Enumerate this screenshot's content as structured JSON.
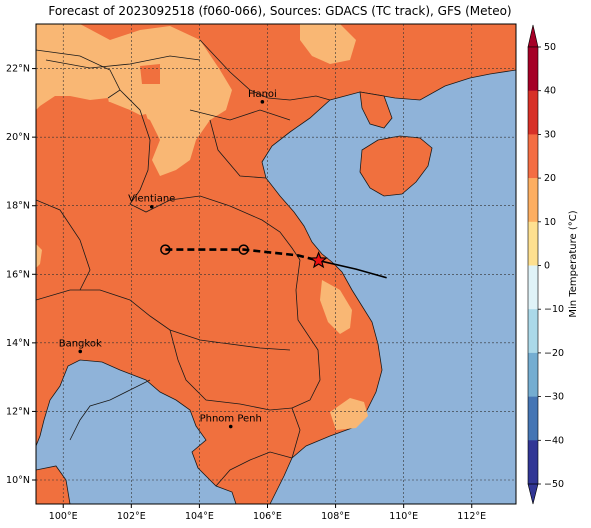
{
  "title": "Forecast of 2023092518 (f060-066), Sources: GDACS (TC track), GFS (Meteo)",
  "map": {
    "lon_range": [
      99.2,
      113.3
    ],
    "lat_range": [
      9.3,
      23.3
    ],
    "lon_ticks": [
      "100°E",
      "102°E",
      "104°E",
      "106°E",
      "108°E",
      "110°E",
      "112°E"
    ],
    "lat_ticks": [
      "22°N",
      "20°N",
      "18°N",
      "16°N",
      "14°N",
      "12°N",
      "10°N"
    ],
    "cities": [
      {
        "name": "Hanoi",
        "lon": 105.85,
        "lat": 21.03
      },
      {
        "name": "Vientiane",
        "lon": 102.6,
        "lat": 17.97
      },
      {
        "name": "Bangkok",
        "lon": 100.5,
        "lat": 13.75
      },
      {
        "name": "Phnom Penh",
        "lon": 104.92,
        "lat": 11.56
      }
    ],
    "track_forecast": [
      {
        "lon": 103.0,
        "lat": 16.72
      },
      {
        "lon": 105.3,
        "lat": 16.72
      },
      {
        "lon": 106.9,
        "lat": 16.55
      },
      {
        "lon": 107.5,
        "lat": 16.4
      }
    ],
    "track_past": [
      {
        "lon": 107.5,
        "lat": 16.4
      },
      {
        "lon": 108.6,
        "lat": 16.15
      },
      {
        "lon": 109.5,
        "lat": 15.9
      }
    ],
    "current_position": {
      "lon": 107.5,
      "lat": 16.4
    },
    "colors": {
      "ocean": "#8fb3d9",
      "land_20_30": "#f0703e",
      "land_10_20": "#f9b774",
      "border": "#1a1a1a"
    }
  },
  "colorbar": {
    "label": "Min Temperature (°C)",
    "ticks": [
      "50",
      "40",
      "30",
      "20",
      "10",
      "0",
      "−10",
      "−20",
      "−30",
      "−40",
      "−50"
    ],
    "colors": [
      "#a50026",
      "#d73027",
      "#f46d43",
      "#fdae61",
      "#fee090",
      "#ffffbf",
      "#e0f3f8",
      "#abd9e9",
      "#74add1",
      "#4575b4",
      "#313695"
    ]
  }
}
